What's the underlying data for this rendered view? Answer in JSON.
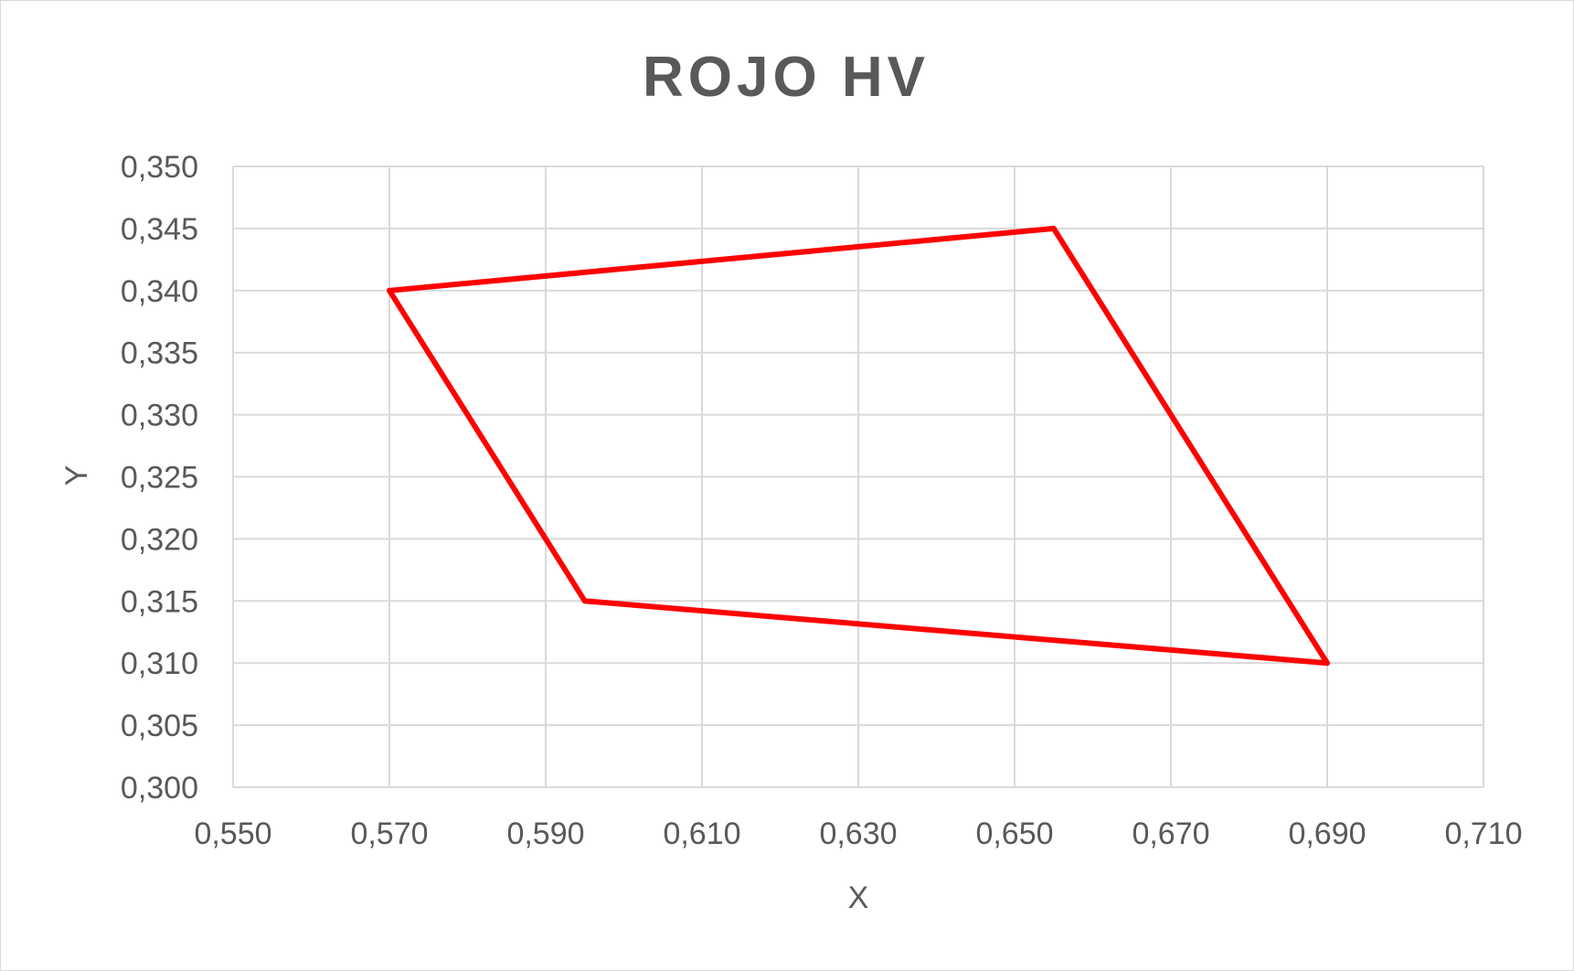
{
  "chart_data": {
    "type": "scatter",
    "title": "ROJO HV",
    "xlabel": "X",
    "ylabel": "Y",
    "xlim": [
      0.55,
      0.71
    ],
    "ylim": [
      0.3,
      0.35
    ],
    "x_ticks": [
      "0,550",
      "0,570",
      "0,590",
      "0,610",
      "0,630",
      "0,650",
      "0,670",
      "0,690",
      "0,710"
    ],
    "y_ticks": [
      "0,350",
      "0,345",
      "0,340",
      "0,335",
      "0,330",
      "0,325",
      "0,320",
      "0,315",
      "0,310",
      "0,305",
      "0,300"
    ],
    "grid": true,
    "legend": "none",
    "series": [
      {
        "color": "#ff0000",
        "line": "straight",
        "markers": false,
        "points": [
          {
            "x": 0.57,
            "y": 0.34
          },
          {
            "x": 0.655,
            "y": 0.345
          },
          {
            "x": 0.69,
            "y": 0.31
          },
          {
            "x": 0.595,
            "y": 0.315
          },
          {
            "x": 0.57,
            "y": 0.34
          }
        ]
      }
    ]
  }
}
